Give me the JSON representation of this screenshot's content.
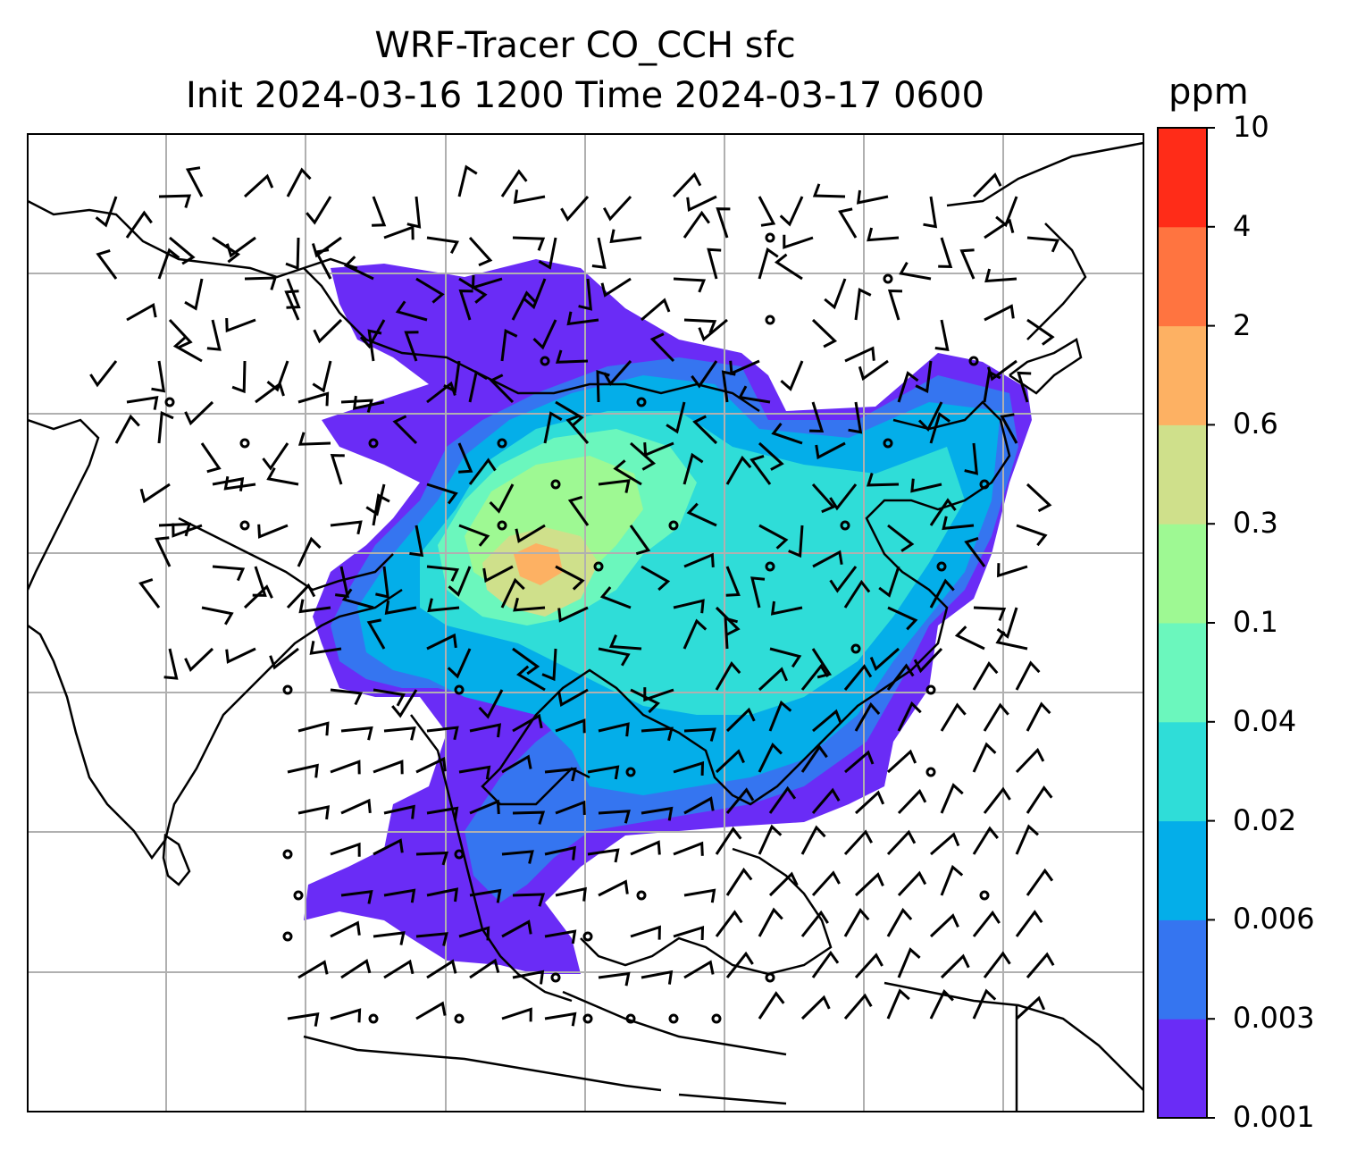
{
  "title": {
    "line1": "WRF-Tracer CO_CCH sfc",
    "line2": "Init 2024-03-16 1200 Time 2024-03-17 0600"
  },
  "colorbar": {
    "unit": "ppm",
    "ticks": [
      "0.001",
      "0.003",
      "0.006",
      "0.02",
      "0.04",
      "0.1",
      "0.3",
      "0.6",
      "2",
      "4",
      "10"
    ],
    "colors": [
      "#6a2cf6",
      "#3575f0",
      "#04aee9",
      "#2fddd8",
      "#6bf7bd",
      "#9ef993",
      "#cfe08b",
      "#fdb163",
      "#ff7440",
      "#ff2c18"
    ]
  },
  "map": {
    "field_colors": {
      "lowest": "#6a2cf6",
      "low": "#3575f0",
      "mid_low": "#04aee9",
      "mid": "#2fddd8",
      "mid_high": "#6bf7bd",
      "high": "#9ef993",
      "higher": "#cfe08b",
      "peak": "#fdb163"
    },
    "grid_color": "#b0b0b0",
    "coastline_color": "#000000"
  }
}
